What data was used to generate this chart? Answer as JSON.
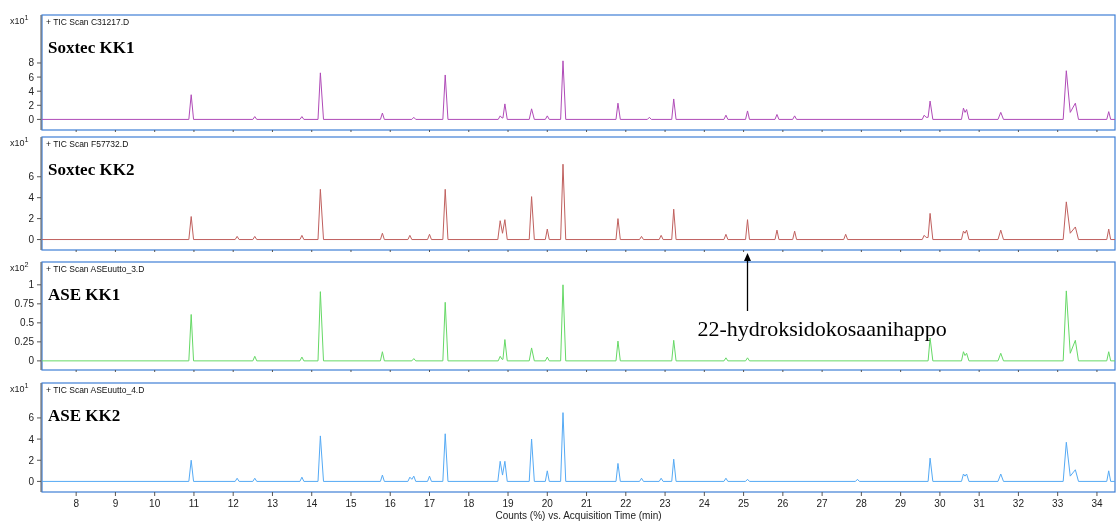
{
  "chart_data": [
    {
      "type": "line",
      "title": "Soxtec KK1",
      "subtitle": "+ TIC Scan C31217.D",
      "ylabel": "x10$^{1}$",
      "xlim": [
        7.13,
        34.46
      ],
      "xticks": [
        8,
        9,
        10,
        11,
        12,
        13,
        14,
        15,
        16,
        17,
        18,
        19,
        20,
        21,
        22,
        23,
        24,
        25,
        26,
        27,
        28,
        29,
        30,
        31,
        32,
        33,
        34
      ],
      "ylim": [
        -1.5,
        14.8
      ],
      "yticks": [
        0,
        2,
        4,
        6,
        8
      ],
      "tick_labels": "y",
      "grid": false,
      "marker": "none",
      "line_style": "solid",
      "series": [
        {
          "color": "#b04bb8",
          "x": [
            7.13,
            10.87,
            10.93,
            10.99,
            12.5,
            12.55,
            12.6,
            13.7,
            13.75,
            13.8,
            14.16,
            14.22,
            14.3,
            15.75,
            15.8,
            15.85,
            16.55,
            16.6,
            16.65,
            17.34,
            17.4,
            17.47,
            18.75,
            18.8,
            18.85,
            18.87,
            18.92,
            18.98,
            19.54,
            19.6,
            19.67,
            19.95,
            20.0,
            20.05,
            20.34,
            20.4,
            20.47,
            21.75,
            21.8,
            21.86,
            22.55,
            22.6,
            22.65,
            23.17,
            23.22,
            23.28,
            24.5,
            24.55,
            24.6,
            25.05,
            25.1,
            25.15,
            25.8,
            25.85,
            25.9,
            26.25,
            26.3,
            26.35,
            29.55,
            29.6,
            29.65,
            29.7,
            29.75,
            29.82,
            30.55,
            30.6,
            30.64,
            30.68,
            30.74,
            31.48,
            31.55,
            31.62,
            33.14,
            33.22,
            33.32,
            33.45,
            33.53,
            34.25,
            34.3,
            34.35,
            34.46
          ],
          "values": [
            0,
            0,
            3.5,
            0,
            0,
            0.4,
            0,
            0,
            0.4,
            0,
            0,
            6.6,
            0,
            0,
            0.9,
            0,
            0,
            0.3,
            0,
            0,
            6.3,
            0,
            0,
            0.5,
            0.2,
            0.2,
            2.2,
            0,
            0,
            1.5,
            0,
            0,
            0.5,
            0,
            0,
            8.3,
            0,
            0,
            2.3,
            0,
            0,
            0.3,
            0,
            0,
            2.9,
            0,
            0,
            0.6,
            0,
            0,
            1.2,
            0,
            0,
            0.7,
            0,
            0,
            0.5,
            0,
            0,
            0.6,
            0.3,
            0.3,
            2.6,
            0,
            0,
            1.6,
            1.0,
            1.4,
            0,
            0,
            1.0,
            0,
            0,
            6.9,
            1.0,
            2.3,
            0,
            0,
            1.1,
            0,
            0
          ]
        }
      ]
    },
    {
      "type": "line",
      "title": "Soxtec KK2",
      "subtitle": "+ TIC Scan F57732.D",
      "ylabel": "x10$^{1}$",
      "xlim": [
        7.13,
        34.46
      ],
      "xticks": [
        8,
        9,
        10,
        11,
        12,
        13,
        14,
        15,
        16,
        17,
        18,
        19,
        20,
        21,
        22,
        23,
        24,
        25,
        26,
        27,
        28,
        29,
        30,
        31,
        32,
        33,
        34
      ],
      "ylim": [
        -1,
        9.8
      ],
      "yticks": [
        0,
        2,
        4,
        6
      ],
      "tick_labels": "y",
      "grid": false,
      "marker": "none",
      "line_style": "solid",
      "annotations": [
        "22-hydroksidokosaanihappo"
      ],
      "series": [
        {
          "color": "#c0605e",
          "x": [
            7.13,
            10.87,
            10.93,
            10.99,
            12.05,
            12.1,
            12.15,
            12.5,
            12.55,
            12.6,
            13.7,
            13.75,
            13.8,
            14.16,
            14.22,
            14.3,
            15.75,
            15.8,
            15.85,
            16.45,
            16.5,
            16.55,
            16.95,
            17.0,
            17.05,
            17.34,
            17.4,
            17.47,
            18.74,
            18.8,
            18.86,
            18.92,
            18.98,
            19.54,
            19.6,
            19.67,
            19.95,
            20.0,
            20.05,
            20.34,
            20.4,
            20.47,
            21.75,
            21.8,
            21.86,
            22.35,
            22.4,
            22.45,
            22.85,
            22.9,
            22.95,
            23.17,
            23.22,
            23.28,
            24.5,
            24.55,
            24.6,
            25.05,
            25.1,
            25.15,
            25.8,
            25.85,
            25.9,
            26.25,
            26.3,
            26.35,
            27.55,
            27.6,
            27.65,
            29.55,
            29.6,
            29.65,
            29.7,
            29.75,
            29.82,
            30.55,
            30.6,
            30.64,
            30.68,
            30.74,
            31.48,
            31.55,
            31.62,
            33.14,
            33.22,
            33.32,
            33.45,
            33.53,
            34.25,
            34.3,
            34.35,
            34.46
          ],
          "values": [
            0,
            0,
            2.2,
            0,
            0,
            0.3,
            0,
            0,
            0.3,
            0,
            0,
            0.4,
            0,
            0,
            4.8,
            0,
            0,
            0.6,
            0,
            0,
            0.4,
            0,
            0,
            0.5,
            0,
            0,
            4.8,
            0,
            0,
            1.8,
            0.6,
            1.9,
            0,
            0,
            4.1,
            0,
            0,
            1.0,
            0,
            0,
            7.2,
            0,
            0,
            2.0,
            0,
            0,
            0.3,
            0,
            0,
            0.4,
            0,
            0,
            2.9,
            0,
            0,
            0.5,
            0,
            0,
            1.9,
            0,
            0,
            0.9,
            0,
            0,
            0.8,
            0,
            0,
            0.5,
            0,
            0,
            0.4,
            0.2,
            0.2,
            2.5,
            0,
            0,
            0.8,
            0.6,
            0.9,
            0,
            0,
            0.9,
            0,
            0,
            3.6,
            0.6,
            1.2,
            0,
            0,
            1.0,
            0,
            0
          ]
        }
      ]
    },
    {
      "type": "line",
      "title": "ASE KK1",
      "subtitle": "+ TIC Scan ASEuutto_3.D",
      "ylabel": "x10$^{2}$",
      "xlim": [
        7.13,
        34.46
      ],
      "xticks": [
        8,
        9,
        10,
        11,
        12,
        13,
        14,
        15,
        16,
        17,
        18,
        19,
        20,
        21,
        22,
        23,
        24,
        25,
        26,
        27,
        28,
        29,
        30,
        31,
        32,
        33,
        34
      ],
      "ylim": [
        -0.12,
        1.3
      ],
      "yticks": [
        0,
        0.25,
        0.5,
        0.75,
        1
      ],
      "tick_labels": "y",
      "grid": false,
      "marker": "none",
      "line_style": "solid",
      "series": [
        {
          "color": "#66d966",
          "x": [
            7.13,
            10.87,
            10.93,
            10.99,
            12.5,
            12.55,
            12.6,
            13.7,
            13.75,
            13.8,
            14.16,
            14.22,
            14.3,
            15.75,
            15.8,
            15.85,
            16.55,
            16.6,
            16.65,
            17.34,
            17.4,
            17.47,
            18.75,
            18.8,
            18.85,
            18.87,
            18.92,
            18.98,
            19.54,
            19.6,
            19.67,
            19.95,
            20.0,
            20.05,
            20.34,
            20.4,
            20.47,
            21.75,
            21.8,
            21.86,
            23.17,
            23.22,
            23.28,
            24.5,
            24.55,
            24.6,
            25.05,
            25.1,
            25.15,
            29.7,
            29.75,
            29.82,
            30.55,
            30.6,
            30.64,
            30.68,
            30.74,
            31.48,
            31.55,
            31.62,
            33.14,
            33.22,
            33.32,
            33.45,
            33.53,
            34.25,
            34.3,
            34.35,
            34.46
          ],
          "values": [
            0,
            0,
            0.61,
            0,
            0,
            0.06,
            0,
            0,
            0.05,
            0,
            0,
            0.91,
            0,
            0,
            0.12,
            0,
            0,
            0.03,
            0,
            0,
            0.77,
            0,
            0,
            0.06,
            0.02,
            0.02,
            0.28,
            0,
            0,
            0.17,
            0,
            0,
            0.05,
            0,
            0,
            1.0,
            0,
            0,
            0.26,
            0,
            0,
            0.27,
            0,
            0,
            0.04,
            0,
            0,
            0.04,
            0,
            0,
            0.3,
            0,
            0,
            0.12,
            0.07,
            0.1,
            0,
            0,
            0.1,
            0,
            0,
            0.92,
            0.1,
            0.27,
            0,
            0,
            0.12,
            0,
            0
          ]
        }
      ]
    },
    {
      "type": "line",
      "title": "ASE KK2",
      "subtitle": "+ TIC Scan ASEuutto_4.D",
      "ylabel": "x10$^{1}$",
      "xlabel": "Counts (%) vs. Acquisition Time (min)",
      "xlim": [
        7.13,
        34.46
      ],
      "xticks": [
        8,
        9,
        10,
        11,
        12,
        13,
        14,
        15,
        16,
        17,
        18,
        19,
        20,
        21,
        22,
        23,
        24,
        25,
        26,
        27,
        28,
        29,
        30,
        31,
        32,
        33,
        34
      ],
      "ylim": [
        -1,
        9.3
      ],
      "yticks": [
        0,
        2,
        4,
        6
      ],
      "grid": false,
      "marker": "none",
      "line_style": "solid",
      "series": [
        {
          "color": "#55aaf5",
          "x": [
            7.13,
            10.87,
            10.93,
            10.99,
            12.05,
            12.1,
            12.15,
            12.5,
            12.55,
            12.6,
            13.7,
            13.75,
            13.8,
            14.16,
            14.22,
            14.3,
            15.75,
            15.8,
            15.85,
            16.45,
            16.5,
            16.55,
            16.6,
            16.65,
            16.95,
            17.0,
            17.05,
            17.34,
            17.4,
            17.47,
            18.74,
            18.8,
            18.86,
            18.92,
            18.98,
            19.54,
            19.6,
            19.67,
            19.95,
            20.0,
            20.05,
            20.34,
            20.4,
            20.47,
            21.75,
            21.8,
            21.86,
            22.35,
            22.4,
            22.45,
            22.85,
            22.9,
            22.95,
            23.17,
            23.22,
            23.28,
            24.5,
            24.55,
            24.6,
            25.05,
            25.1,
            25.15,
            27.85,
            27.9,
            27.95,
            29.7,
            29.75,
            29.82,
            30.55,
            30.6,
            30.64,
            30.68,
            30.74,
            31.48,
            31.55,
            31.62,
            33.14,
            33.22,
            33.32,
            33.45,
            33.53,
            34.25,
            34.3,
            34.35,
            34.46
          ],
          "values": [
            0,
            0,
            2.0,
            0,
            0,
            0.3,
            0,
            0,
            0.3,
            0,
            0,
            0.4,
            0,
            0,
            4.3,
            0,
            0,
            0.6,
            0,
            0,
            0.4,
            0.2,
            0.5,
            0,
            0,
            0.5,
            0,
            0,
            4.5,
            0,
            0,
            1.9,
            0.6,
            1.9,
            0,
            0,
            4.0,
            0,
            0,
            1.0,
            0,
            0,
            6.5,
            0,
            0,
            1.7,
            0,
            0,
            0.3,
            0,
            0,
            0.3,
            0,
            0,
            2.1,
            0,
            0,
            0.3,
            0,
            0,
            0.2,
            0,
            0,
            0.2,
            0,
            0,
            2.2,
            0,
            0,
            0.7,
            0.5,
            0.7,
            0,
            0,
            0.7,
            0,
            0,
            3.7,
            0.5,
            1.1,
            0,
            0,
            1.0,
            0,
            0
          ]
        }
      ]
    }
  ]
}
